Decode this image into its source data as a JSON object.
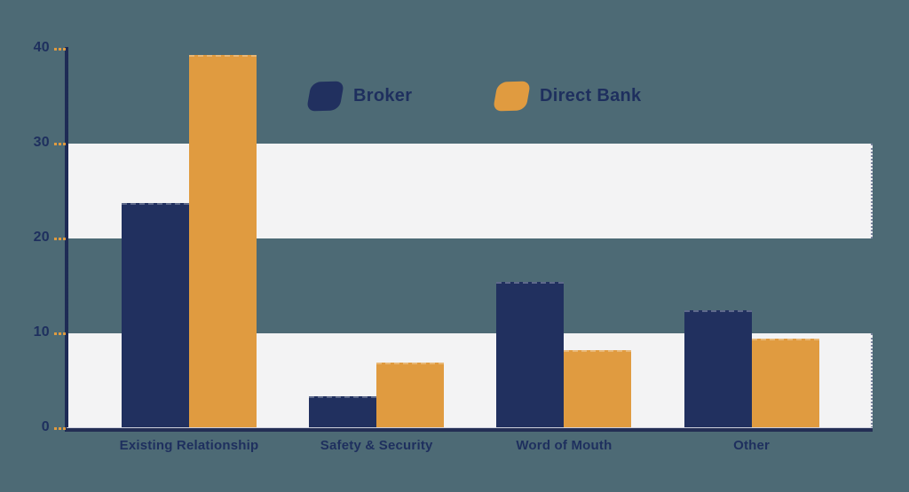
{
  "chart_data": {
    "type": "bar",
    "title": "",
    "categories": [
      "Existing Relationship",
      "Safety & Security",
      "Word of Mouth",
      "Other"
    ],
    "series": [
      {
        "name": "Broker",
        "color": "#21305f",
        "values": [
          23.7,
          3.4,
          15.4,
          12.4
        ]
      },
      {
        "name": "Direct Bank",
        "color": "#e09b40",
        "values": [
          39.3,
          6.9,
          8.2,
          9.4
        ]
      }
    ],
    "xlabel": "",
    "ylabel": "",
    "ylim": [
      0,
      40
    ],
    "yticks": [
      0,
      10,
      20,
      30,
      40
    ],
    "grid_bands": [
      [
        0,
        10
      ],
      [
        20,
        30
      ]
    ],
    "legend_position": "top-center",
    "colors": {
      "background": "#4d6a75",
      "band": "#f3f3f4",
      "axis": "#232e54",
      "label_text": "#1e2f5e",
      "tick_dash": "#e09b40"
    }
  }
}
